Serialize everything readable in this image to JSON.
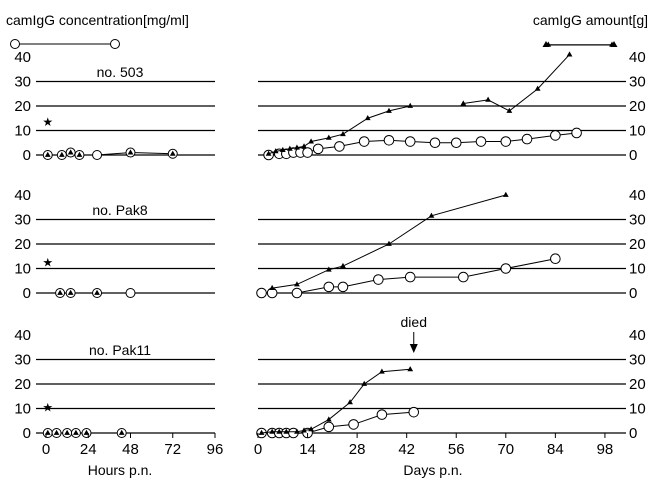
{
  "chart_data": [
    {
      "type": "line",
      "title": "no. 503",
      "xlabel_left": "Hours p.n.",
      "xlabel_right": "Days p.n.",
      "ylabel_left": "camIgG concentration[mg/ml]",
      "ylabel_right": "camIgG amount[g]",
      "left_ylim": [
        0,
        40
      ],
      "right_ylim": [
        0,
        40
      ],
      "left_xlim": [
        0,
        96
      ],
      "right_xlim": [
        0,
        100
      ],
      "yticks": [
        "0",
        "10",
        "20",
        "30",
        "40"
      ],
      "left_xticks": [
        "0",
        "24",
        "48",
        "72",
        "96"
      ],
      "right_xticks": [
        "0",
        "14",
        "28",
        "42",
        "56",
        "70",
        "84",
        "98"
      ],
      "grid": true,
      "left_star": {
        "x": 1,
        "y": 13.5
      },
      "left_series": [
        {
          "marker": "triangle",
          "x": [
            1,
            9,
            14,
            19,
            48,
            72
          ],
          "y": [
            0,
            0,
            1,
            0,
            1,
            0.5
          ]
        },
        {
          "marker": "circle",
          "x": [
            1,
            9,
            14,
            19,
            29,
            48,
            72
          ],
          "y": [
            0,
            0,
            1,
            0,
            0,
            1,
            0.5
          ]
        }
      ],
      "right_series": [
        {
          "marker": "triangle",
          "segments": [
            {
              "x": [
                3,
                5,
                7,
                9,
                11,
                13,
                15,
                20,
                24,
                31,
                37,
                43
              ],
              "y": [
                0.5,
                1.5,
                2,
                2.5,
                3,
                3.5,
                5.5,
                7,
                8.5,
                15,
                18,
                20
              ]
            },
            {
              "x": [
                58,
                65,
                71,
                79,
                88
              ],
              "y": [
                21,
                22.5,
                18,
                27,
                41
              ]
            },
            {
              "x": [
                82,
                100
              ],
              "y": [
                45,
                45
              ]
            }
          ]
        },
        {
          "marker": "circle",
          "x": [
            3,
            6,
            8,
            10,
            12,
            14,
            17,
            23,
            30,
            37,
            43,
            50,
            56,
            63,
            70,
            76,
            84,
            90
          ],
          "y": [
            0,
            0.5,
            0.5,
            1,
            1,
            1,
            2.5,
            3.5,
            5.5,
            6,
            5.5,
            5,
            5,
            5.5,
            5.5,
            6.5,
            8,
            9
          ]
        }
      ]
    },
    {
      "type": "line",
      "title": "no. Pak8",
      "left_ylim": [
        0,
        40
      ],
      "right_ylim": [
        0,
        40
      ],
      "left_xlim": [
        0,
        96
      ],
      "right_xlim": [
        0,
        100
      ],
      "yticks": [
        "0",
        "10",
        "20",
        "30",
        "40"
      ],
      "grid": true,
      "left_star": {
        "x": 1,
        "y": 12.5
      },
      "left_series": [
        {
          "marker": "triangle",
          "x": [
            8,
            14,
            29
          ],
          "y": [
            0,
            0,
            0
          ]
        },
        {
          "marker": "circle",
          "x": [
            8,
            14,
            29,
            48
          ],
          "y": [
            0,
            0,
            0,
            0
          ]
        }
      ],
      "right_series": [
        {
          "marker": "triangle",
          "segments": [
            {
              "x": [
                4,
                11,
                20,
                24,
                37,
                49,
                70
              ],
              "y": [
                2,
                3.5,
                9.5,
                11,
                20,
                31.5,
                40
              ]
            }
          ]
        },
        {
          "marker": "circle",
          "x": [
            1,
            4,
            11,
            20,
            24,
            34,
            43,
            58,
            70,
            84
          ],
          "y": [
            0,
            0,
            0,
            2.5,
            2.5,
            5.5,
            6.5,
            6.5,
            10,
            14
          ]
        }
      ]
    },
    {
      "type": "line",
      "title": "no. Pak11",
      "left_ylim": [
        0,
        40
      ],
      "right_ylim": [
        0,
        40
      ],
      "left_xlim": [
        0,
        96
      ],
      "right_xlim": [
        0,
        100
      ],
      "yticks": [
        "0",
        "10",
        "20",
        "30",
        "40"
      ],
      "grid": true,
      "annotation": {
        "text": "died",
        "x": 44
      },
      "left_star": {
        "x": 1,
        "y": 10.5
      },
      "left_series": [
        {
          "marker": "triangle",
          "x": [
            1,
            6,
            12,
            17,
            23,
            43
          ],
          "y": [
            0,
            0,
            0,
            0,
            0,
            0
          ]
        },
        {
          "marker": "circle",
          "x": [
            1,
            6,
            12,
            17,
            23,
            43
          ],
          "y": [
            0,
            0,
            0,
            0,
            0,
            0
          ]
        }
      ],
      "right_series": [
        {
          "marker": "triangle",
          "segments": [
            {
              "x": [
                1,
                4,
                6,
                8,
                11,
                13,
                15,
                20,
                26,
                30,
                35,
                43
              ],
              "y": [
                0,
                0.5,
                0.5,
                0.5,
                0.5,
                1,
                1.5,
                5.5,
                12.5,
                20,
                25,
                26
              ]
            }
          ]
        },
        {
          "marker": "circle",
          "x": [
            1,
            4,
            6,
            8,
            10,
            14,
            20,
            27,
            35,
            44
          ],
          "y": [
            0,
            0,
            0,
            0,
            0,
            0,
            2.5,
            3.5,
            7.5,
            8.5
          ]
        }
      ]
    }
  ],
  "legend": {
    "left_symbol": "circle",
    "right_symbol": "triangle"
  }
}
